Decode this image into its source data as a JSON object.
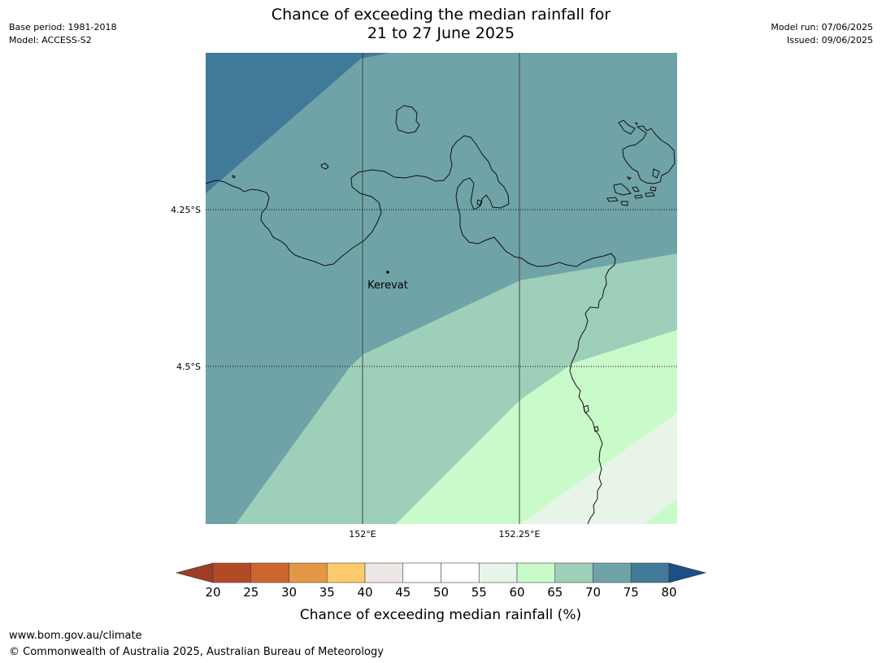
{
  "header": {
    "title_line1": "Chance of exceeding the median rainfall for",
    "title_line2": "21 to 27 June 2025",
    "base_period": "Base period: 1981-2018",
    "model": "Model: ACCESS-S2",
    "model_run": "Model run: 07/06/2025",
    "issued": "Issued: 09/06/2025"
  },
  "map": {
    "lat_labels": [
      "4.25°S",
      "4.5°S"
    ],
    "lon_labels": [
      "152°E",
      "152.25°E"
    ],
    "place": {
      "name": "Kerevat",
      "lon": 152.04,
      "lat": -4.354
    },
    "legend_colors": {
      "70-75": "#6fa3a8",
      "75-80": "#417a98",
      "65-70": "#9ecfb9",
      "60-65": "#c9fbca",
      "55-60": "#e8f4e8"
    }
  },
  "colorbar": {
    "title": "Chance of exceeding median rainfall (%)",
    "ticks": [
      "20",
      "25",
      "30",
      "35",
      "40",
      "45",
      "50",
      "55",
      "60",
      "65",
      "70",
      "75",
      "80"
    ],
    "under_color": "#9c3d27",
    "over_color": "#1a4f87",
    "bins": [
      {
        "from": 20,
        "to": 25,
        "color": "#b24a26"
      },
      {
        "from": 25,
        "to": 30,
        "color": "#cd6531"
      },
      {
        "from": 30,
        "to": 35,
        "color": "#e49846"
      },
      {
        "from": 35,
        "to": 40,
        "color": "#fecb6c"
      },
      {
        "from": 40,
        "to": 45,
        "color": "#ede8e5"
      },
      {
        "from": 45,
        "to": 50,
        "color": "#ffffff"
      },
      {
        "from": 50,
        "to": 55,
        "color": "#ffffff"
      },
      {
        "from": 55,
        "to": 60,
        "color": "#e8f4e8"
      },
      {
        "from": 60,
        "to": 65,
        "color": "#c9fbca"
      },
      {
        "from": 65,
        "to": 70,
        "color": "#9ecfb9"
      },
      {
        "from": 70,
        "to": 75,
        "color": "#6fa3a8"
      },
      {
        "from": 75,
        "to": 80,
        "color": "#417a98"
      }
    ]
  },
  "footer": {
    "url": "www.bom.gov.au/climate",
    "copyright": "© Commonwealth of Australia 2025, Australian Bureau of Meteorology"
  }
}
